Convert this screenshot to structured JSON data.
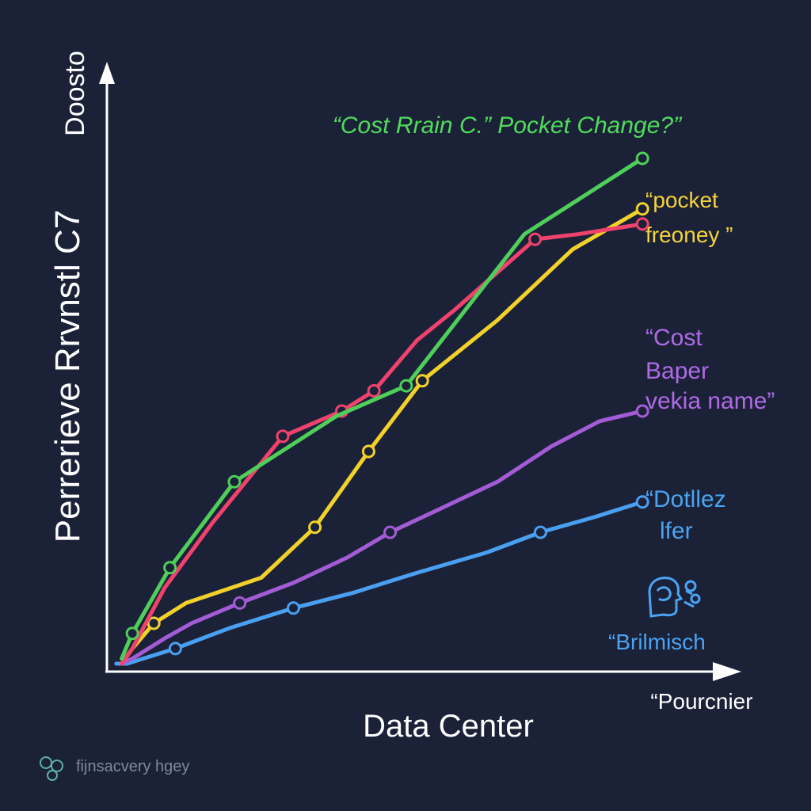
{
  "chart_data": {
    "type": "line",
    "title": "“Cost Rrain C.” Pocket Change?”",
    "xlabel": "Data Center",
    "ylabel": "Perrerieve Rrvnstl C7",
    "axis_top_label": "Doosto",
    "axis_end_label": "“Pourcnier",
    "xlim": [
      0,
      100
    ],
    "ylim": [
      0,
      100
    ],
    "grid": false,
    "series": [
      {
        "name": "“Cost Rrain C.” Pocket Change?”",
        "color": "#4fcf5a",
        "points": [
          [
            2,
            1
          ],
          [
            4,
            6
          ],
          [
            11,
            19
          ],
          [
            23,
            36
          ],
          [
            42,
            49
          ],
          [
            55,
            55
          ],
          [
            77,
            85
          ],
          [
            99,
            100
          ]
        ],
        "marker_indices": [
          1,
          2,
          3,
          5,
          7
        ]
      },
      {
        "name": "“pocket freoney ”",
        "color": "#f0426d",
        "points": [
          [
            2,
            0
          ],
          [
            4,
            3
          ],
          [
            10,
            15
          ],
          [
            19,
            28
          ],
          [
            32,
            45
          ],
          [
            43,
            50
          ],
          [
            49,
            54
          ],
          [
            57,
            64
          ],
          [
            64,
            70
          ],
          [
            79,
            84
          ],
          [
            87,
            85
          ],
          [
            99,
            87
          ]
        ],
        "marker_indices": [
          4,
          5,
          6,
          9,
          11
        ]
      },
      {
        "name": "“pocket freoney ”",
        "color": "#f2d22a",
        "points": [
          [
            2,
            0
          ],
          [
            4,
            3
          ],
          [
            8,
            8
          ],
          [
            14,
            12
          ],
          [
            28,
            17
          ],
          [
            38,
            27
          ],
          [
            48,
            42
          ],
          [
            58,
            56
          ],
          [
            72,
            68
          ],
          [
            86,
            82
          ],
          [
            99,
            90
          ]
        ],
        "marker_indices": [
          2,
          5,
          6,
          7,
          10
        ]
      },
      {
        "name": "“Cost Baper vekia name”",
        "color": "#a45cd6",
        "points": [
          [
            2,
            0
          ],
          [
            4,
            1
          ],
          [
            10,
            5
          ],
          [
            15,
            8
          ],
          [
            24,
            12
          ],
          [
            34,
            16
          ],
          [
            44,
            21
          ],
          [
            52,
            26
          ],
          [
            62,
            31
          ],
          [
            72,
            36
          ],
          [
            82,
            43
          ],
          [
            91,
            48
          ],
          [
            99,
            50
          ]
        ],
        "marker_indices": [
          4,
          7,
          12
        ]
      },
      {
        "name": "“Dotllez lfer",
        "color": "#4a9ff0",
        "points": [
          [
            1,
            0
          ],
          [
            3,
            0
          ],
          [
            12,
            3
          ],
          [
            22,
            7
          ],
          [
            34,
            11
          ],
          [
            45,
            14
          ],
          [
            57,
            18
          ],
          [
            70,
            22
          ],
          [
            80,
            26
          ],
          [
            90,
            29
          ],
          [
            99,
            32
          ]
        ],
        "marker_indices": [
          2,
          4,
          8,
          10
        ]
      }
    ]
  },
  "annotations": {
    "pink": [
      "“pocket",
      "freoney ”"
    ],
    "purple": [
      "“Cost",
      "Baper",
      "vekia name”"
    ],
    "blue": [
      "“Dotllez",
      "lfer"
    ],
    "brilmisch": "“Brilmisch"
  },
  "watermark": {
    "text": "fiјnsacvery hgey"
  },
  "icons": {
    "annotation_icon": "brain-head-icon",
    "watermark_icon": "watermark-logo-icon"
  }
}
